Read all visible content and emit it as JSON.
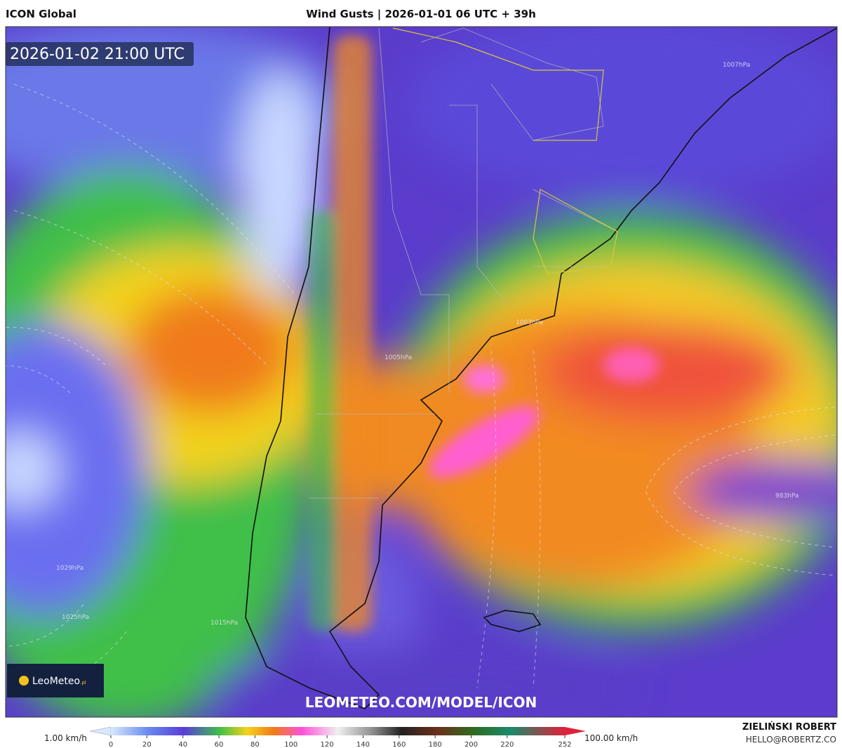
{
  "header": {
    "model": "ICON Global",
    "title": "Wind Gusts | 2026-01-01 06 UTC + 39h"
  },
  "map": {
    "valid_time": "2026-01-02 21:00 UTC",
    "watermark": "LEOMETEO.COM/MODEL/ICON",
    "logo": {
      "name": "LeoMeteo",
      "suffix": ".pl"
    },
    "isobar_labels": [
      "1007hPa",
      "1003hPa",
      "1005hPa",
      "983hPa",
      "1029hPa",
      "1025hPa",
      "1015hPa"
    ]
  },
  "colorbar": {
    "min_label": "1.00 km/h",
    "max_label": "100.00 km/h",
    "lim": [
      0,
      252
    ],
    "ticks": [
      0,
      20,
      40,
      60,
      80,
      100,
      120,
      140,
      160,
      180,
      200,
      220,
      252
    ]
  },
  "footer": {
    "author": "ZIELIŃSKI ROBERT",
    "email": "HELLO@ROBERTZ.CO"
  }
}
